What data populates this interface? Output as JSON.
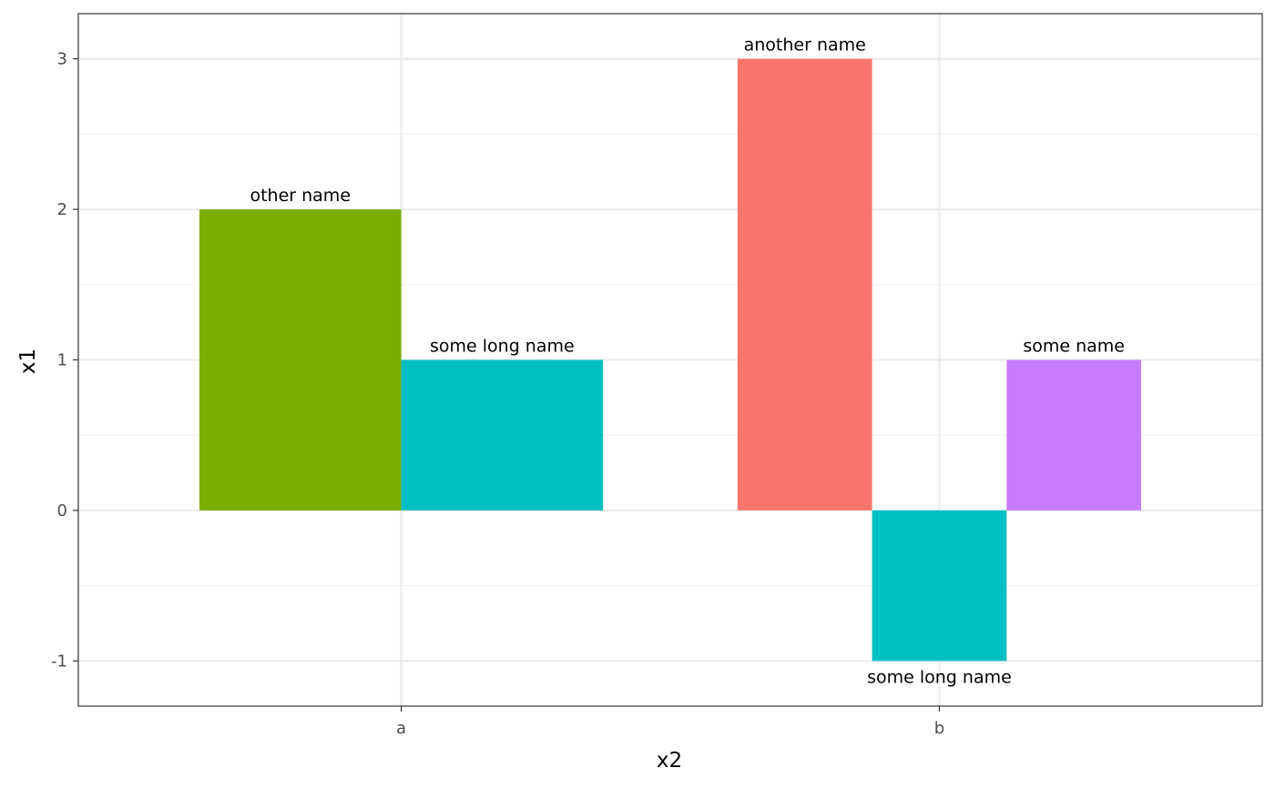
{
  "chart_data": {
    "type": "bar",
    "title": "",
    "xlabel": "x2",
    "ylabel": "x1",
    "ylim": [
      -1.3,
      3.3
    ],
    "y_ticks": [
      -1,
      0,
      1,
      2,
      3
    ],
    "y_minor_ticks": [
      -0.5,
      0.5,
      1.5,
      2.5
    ],
    "grid": true,
    "legend": false,
    "categories": [
      "a",
      "b"
    ],
    "groups": [
      {
        "category": "a",
        "bars": [
          {
            "label": "other name",
            "value": 2,
            "color": "#7CAE00"
          },
          {
            "label": "some long name",
            "value": 1,
            "color": "#00BFC4"
          }
        ]
      },
      {
        "category": "b",
        "bars": [
          {
            "label": "another name",
            "value": 3,
            "color": "#F8766D"
          },
          {
            "label": "some long name",
            "value": -1,
            "color": "#00BFC4"
          },
          {
            "label": "some name",
            "value": 1,
            "color": "#C77CFF"
          }
        ]
      }
    ]
  }
}
